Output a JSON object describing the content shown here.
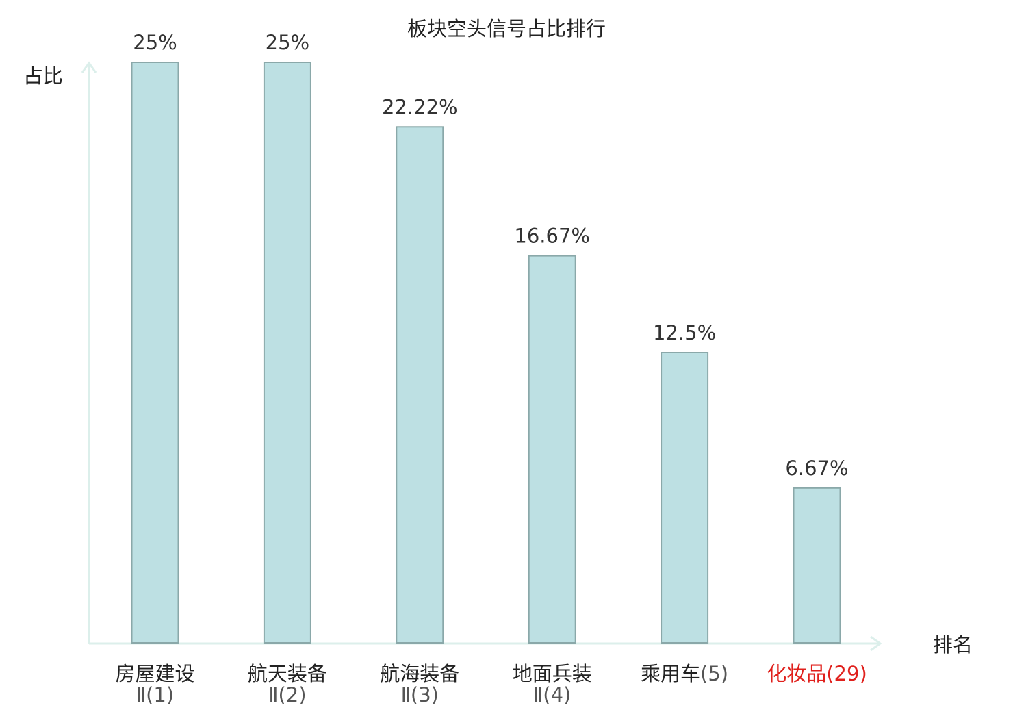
{
  "chart_data": {
    "type": "bar",
    "title": "板块空头信号占比排行",
    "ylabel": "占比",
    "xlabel": "排名",
    "ylim": [
      0,
      25
    ],
    "grid": false,
    "value_suffix": "%",
    "categories": [
      {
        "name": "房屋建设",
        "rank": "Ⅱ(1)",
        "highlight": false
      },
      {
        "name": "航天装备",
        "rank": "Ⅱ(2)",
        "highlight": false
      },
      {
        "name": "航海装备",
        "rank": "Ⅱ(3)",
        "highlight": false
      },
      {
        "name": "地面兵装",
        "rank": "Ⅱ(4)",
        "highlight": false
      },
      {
        "name": "乘用车",
        "rank": "(5)",
        "highlight": false
      },
      {
        "name": "化妆品",
        "rank": "(29)",
        "highlight": true
      }
    ],
    "values": [
      25,
      25,
      22.22,
      16.67,
      12.5,
      6.67
    ],
    "value_labels": [
      "25%",
      "25%",
      "22.22%",
      "16.67%",
      "12.5%",
      "6.67%"
    ]
  },
  "colors": {
    "bar_fill": "#bde0e3",
    "bar_stroke": "#8aa8a9",
    "axis": "#dcefeb",
    "highlight": "#e0201c"
  }
}
